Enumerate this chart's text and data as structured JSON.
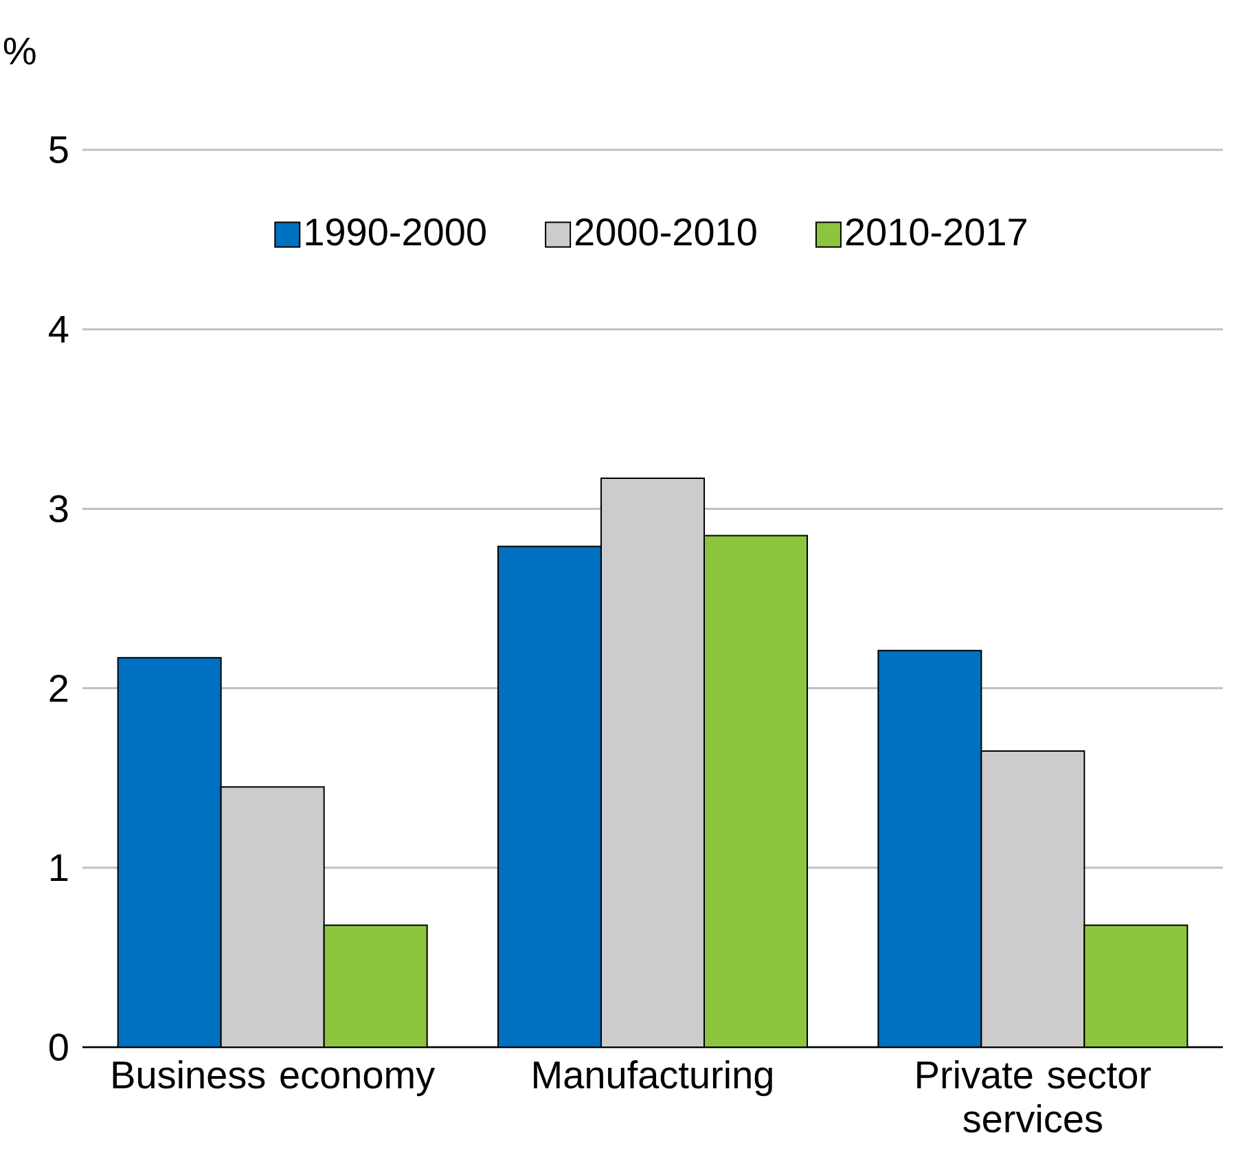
{
  "chart_data": {
    "type": "bar",
    "ylabel": "%",
    "categories": [
      "Business economy",
      "Manufacturing",
      "Private sector services"
    ],
    "series": [
      {
        "name": "1990-2000",
        "color": "#0070c0",
        "values": [
          2.17,
          2.79,
          2.21
        ]
      },
      {
        "name": "2000-2010",
        "color": "#cccccc",
        "values": [
          1.45,
          3.17,
          1.65
        ]
      },
      {
        "name": "2010-2017",
        "color": "#8cc63f",
        "values": [
          0.68,
          2.85,
          0.68
        ]
      }
    ],
    "ylim": [
      0,
      5
    ],
    "yticks": [
      0,
      1,
      2,
      3,
      4,
      5
    ],
    "grid": "y",
    "legend": "top"
  }
}
